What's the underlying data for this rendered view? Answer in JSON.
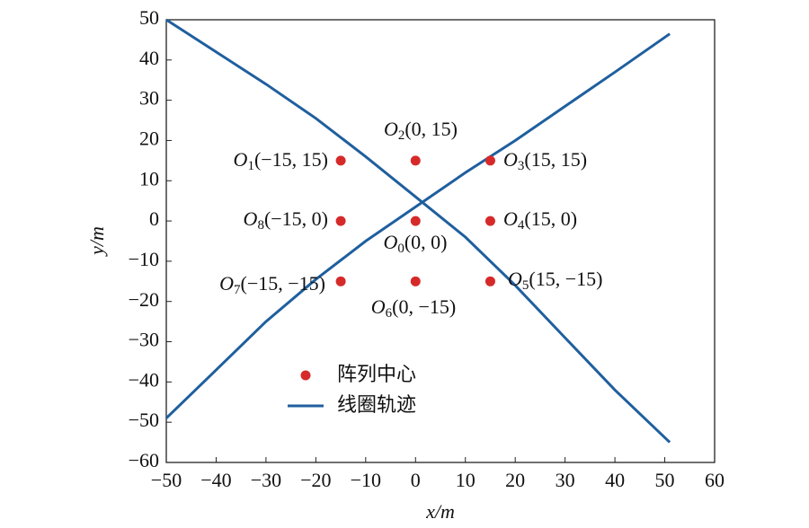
{
  "chart_data": {
    "type": "scatter",
    "xlabel": "x/m",
    "ylabel": "y/m",
    "xlim": [
      -50,
      60
    ],
    "ylim": [
      -60,
      50
    ],
    "xticks": [
      {
        "value": -50,
        "label": "−50"
      },
      {
        "value": -40,
        "label": "−40"
      },
      {
        "value": -30,
        "label": "−30"
      },
      {
        "value": -20,
        "label": "−20"
      },
      {
        "value": -10,
        "label": "−10"
      },
      0,
      10,
      20,
      30,
      40,
      50,
      60
    ],
    "yticks": [
      {
        "value": -60,
        "label": "−60"
      },
      {
        "value": -50,
        "label": "−50"
      },
      {
        "value": -40,
        "label": "−40"
      },
      {
        "value": -30,
        "label": "−30"
      },
      {
        "value": -20,
        "label": "−20"
      },
      {
        "value": -10,
        "label": "−10"
      },
      0,
      10,
      20,
      30,
      40,
      50
    ],
    "legend": "lower left",
    "series": [
      {
        "name": "阵列中心",
        "kind": "points",
        "color": "#d62a2a",
        "x": [
          0,
          -15,
          0,
          15,
          15,
          15,
          0,
          -15,
          -15
        ],
        "values": [
          0,
          15,
          15,
          15,
          0,
          -15,
          -15,
          -15,
          0
        ]
      },
      {
        "name": "线圈轨迹",
        "kind": "line",
        "color": "#1f5f9e",
        "x": [
          -50,
          -40,
          -30,
          -20,
          -10,
          0,
          10,
          20,
          30,
          40,
          51,
          null,
          -50,
          -40,
          -30,
          -20,
          -10,
          0,
          10,
          20,
          30,
          40,
          51
        ],
        "values": [
          50,
          42,
          34,
          25.5,
          16,
          6,
          -4,
          -16,
          -29,
          -42,
          -55,
          null,
          -49,
          -37,
          -25,
          -14.5,
          -5,
          3.5,
          12,
          20,
          28.5,
          37,
          46.5
        ]
      }
    ],
    "point_labels": [
      {
        "base": "O",
        "sub": "0",
        "rest": "(0, 0)"
      },
      {
        "base": "O",
        "sub": "1",
        "rest": "(−15, 15)"
      },
      {
        "base": "O",
        "sub": "2",
        "rest": "(0, 15)"
      },
      {
        "base": "O",
        "sub": "3",
        "rest": "(15, 15)"
      },
      {
        "base": "O",
        "sub": "4",
        "rest": "(15, 0)"
      },
      {
        "base": "O",
        "sub": "5",
        "rest": "(15, −15)"
      },
      {
        "base": "O",
        "sub": "6",
        "rest": "(0, −15)"
      },
      {
        "base": "O",
        "sub": "7",
        "rest": "(−15, −15)"
      },
      {
        "base": "O",
        "sub": "8",
        "rest": "(−15, 0)"
      }
    ]
  }
}
